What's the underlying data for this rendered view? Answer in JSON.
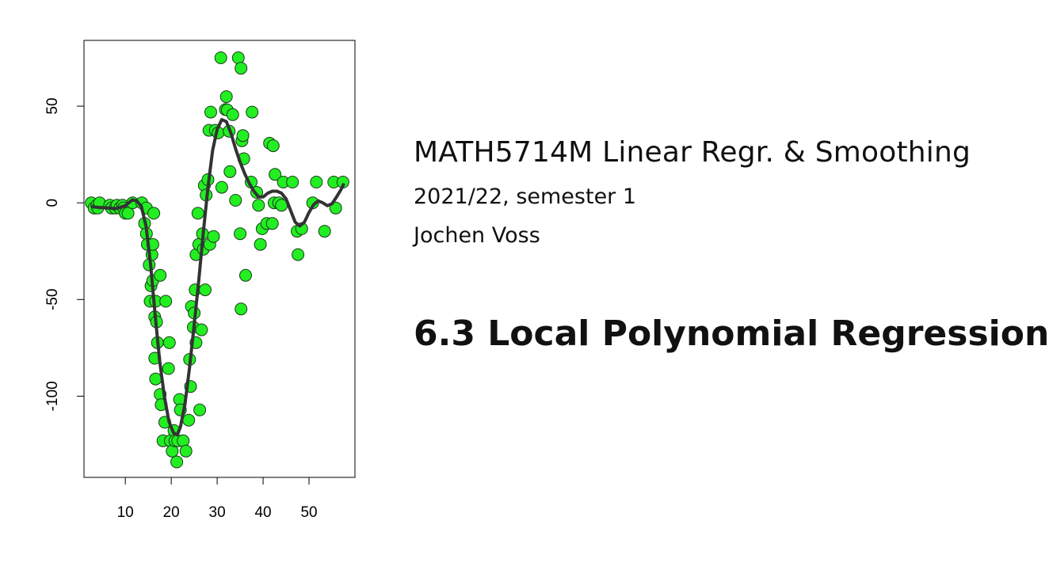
{
  "slide": {
    "course_title": "MATH5714M Linear Regr. & Smoothing",
    "semester": "2021/22, semester 1",
    "author": "Jochen Voss",
    "section_title": "6.3 Local Polynomial Regression"
  },
  "chart_data": {
    "type": "scatter",
    "title": "",
    "xlabel": "",
    "ylabel": "",
    "xlim": [
      1,
      60
    ],
    "ylim": [
      -142,
      84
    ],
    "x_ticks": [
      10,
      20,
      30,
      40,
      50
    ],
    "y_ticks": [
      -100,
      -50,
      0,
      50
    ],
    "grid": false,
    "point_color": "#22ee22",
    "point_edge_color": "#1a3a1a",
    "line_color": "#333333",
    "points": [
      [
        2.6,
        0.0
      ],
      [
        3.2,
        -2.7
      ],
      [
        3.8,
        -1.3
      ],
      [
        4.0,
        -2.7
      ],
      [
        4.4,
        0.0
      ],
      [
        6.6,
        -1.3
      ],
      [
        7.0,
        -2.7
      ],
      [
        7.8,
        -2.7
      ],
      [
        8.2,
        -1.3
      ],
      [
        8.8,
        -2.7
      ],
      [
        9.4,
        -1.3
      ],
      [
        9.6,
        -2.7
      ],
      [
        10.0,
        -5.4
      ],
      [
        10.6,
        -5.4
      ],
      [
        11.6,
        0.0
      ],
      [
        13.6,
        0.0
      ],
      [
        14.2,
        -10.7
      ],
      [
        14.6,
        -2.7
      ],
      [
        14.6,
        -16.0
      ],
      [
        14.8,
        -21.5
      ],
      [
        15.2,
        -32.1
      ],
      [
        15.4,
        -50.9
      ],
      [
        15.6,
        -42.9
      ],
      [
        15.8,
        -26.8
      ],
      [
        16.0,
        -21.5
      ],
      [
        16.0,
        -40.2
      ],
      [
        16.2,
        -5.4
      ],
      [
        16.4,
        -59.0
      ],
      [
        16.4,
        -80.4
      ],
      [
        16.6,
        -91.1
      ],
      [
        16.6,
        -50.9
      ],
      [
        16.8,
        -61.6
      ],
      [
        17.0,
        -72.3
      ],
      [
        17.6,
        -37.5
      ],
      [
        17.6,
        -99.1
      ],
      [
        17.8,
        -104.4
      ],
      [
        18.2,
        -123.1
      ],
      [
        18.6,
        -113.5
      ],
      [
        18.8,
        -50.9
      ],
      [
        19.4,
        -85.7
      ],
      [
        19.8,
        -123.1
      ],
      [
        19.6,
        -72.3
      ],
      [
        20.2,
        -128.4
      ],
      [
        20.6,
        -117.8
      ],
      [
        20.8,
        -123.1
      ],
      [
        21.2,
        -134.0
      ],
      [
        21.4,
        -123.1
      ],
      [
        21.8,
        -101.7
      ],
      [
        22.0,
        -107.1
      ],
      [
        22.6,
        -123.1
      ],
      [
        23.2,
        -128.4
      ],
      [
        23.8,
        -112.4
      ],
      [
        24.0,
        -81.0
      ],
      [
        24.2,
        -95.0
      ],
      [
        24.4,
        -53.6
      ],
      [
        24.8,
        -64.3
      ],
      [
        25.0,
        -57.0
      ],
      [
        25.2,
        -45.0
      ],
      [
        25.4,
        -26.8
      ],
      [
        25.4,
        -72.3
      ],
      [
        25.8,
        -5.4
      ],
      [
        26.0,
        -21.5
      ],
      [
        26.2,
        -107.1
      ],
      [
        26.6,
        -65.7
      ],
      [
        26.8,
        -16.0
      ],
      [
        27.0,
        -24.0
      ],
      [
        27.2,
        9.0
      ],
      [
        27.4,
        -45.0
      ],
      [
        27.6,
        4.0
      ],
      [
        28.0,
        12.0
      ],
      [
        28.2,
        37.5
      ],
      [
        28.4,
        -21.5
      ],
      [
        28.6,
        46.9
      ],
      [
        29.2,
        -17.4
      ],
      [
        29.6,
        37.5
      ],
      [
        30.2,
        36.2
      ],
      [
        30.8,
        75.0
      ],
      [
        31.0,
        8.0
      ],
      [
        31.8,
        48.2
      ],
      [
        32.0,
        54.9
      ],
      [
        32.2,
        48.0
      ],
      [
        32.6,
        37.0
      ],
      [
        32.8,
        16.1
      ],
      [
        33.4,
        45.6
      ],
      [
        34.0,
        1.3
      ],
      [
        34.6,
        75.0
      ],
      [
        35.0,
        -16.0
      ],
      [
        35.2,
        69.6
      ],
      [
        35.2,
        -54.9
      ],
      [
        35.4,
        32.1
      ],
      [
        35.6,
        34.8
      ],
      [
        35.8,
        22.8
      ],
      [
        36.2,
        -37.5
      ],
      [
        37.4,
        10.7
      ],
      [
        37.6,
        46.9
      ],
      [
        38.6,
        5.4
      ],
      [
        39.0,
        -1.3
      ],
      [
        39.4,
        -21.5
      ],
      [
        39.8,
        -13.4
      ],
      [
        40.8,
        -10.7
      ],
      [
        41.4,
        30.8
      ],
      [
        42.0,
        -10.7
      ],
      [
        42.2,
        29.5
      ],
      [
        42.6,
        14.7
      ],
      [
        42.4,
        0.0
      ],
      [
        43.4,
        0.0
      ],
      [
        44.0,
        -1.3
      ],
      [
        44.4,
        10.7
      ],
      [
        46.4,
        10.7
      ],
      [
        47.4,
        -14.7
      ],
      [
        47.6,
        -26.8
      ],
      [
        48.4,
        -13.4
      ],
      [
        50.8,
        0.0
      ],
      [
        51.6,
        10.7
      ],
      [
        53.4,
        -14.7
      ],
      [
        55.4,
        10.7
      ],
      [
        55.8,
        -2.7
      ],
      [
        57.4,
        10.7
      ]
    ],
    "smooth_line": [
      [
        2.6,
        -2.0
      ],
      [
        5.0,
        -2.5
      ],
      [
        8.0,
        -3.0
      ],
      [
        10.0,
        -1.5
      ],
      [
        11.5,
        1.5
      ],
      [
        12.5,
        1.0
      ],
      [
        13.5,
        -2.0
      ],
      [
        14.5,
        -12.0
      ],
      [
        15.5,
        -32.0
      ],
      [
        16.5,
        -58.0
      ],
      [
        17.5,
        -82.0
      ],
      [
        18.5,
        -100.0
      ],
      [
        19.5,
        -113.0
      ],
      [
        20.5,
        -119.0
      ],
      [
        21.3,
        -120.0
      ],
      [
        22.0,
        -116.0
      ],
      [
        23.0,
        -104.0
      ],
      [
        24.0,
        -85.0
      ],
      [
        25.0,
        -63.0
      ],
      [
        26.0,
        -40.0
      ],
      [
        27.0,
        -15.0
      ],
      [
        28.0,
        8.0
      ],
      [
        29.0,
        27.0
      ],
      [
        30.0,
        38.0
      ],
      [
        31.0,
        43.0
      ],
      [
        32.0,
        42.0
      ],
      [
        33.0,
        36.0
      ],
      [
        34.0,
        28.0
      ],
      [
        35.0,
        21.0
      ],
      [
        36.0,
        15.0
      ],
      [
        37.0,
        10.0
      ],
      [
        38.0,
        6.0
      ],
      [
        39.0,
        3.0
      ],
      [
        40.0,
        3.0
      ],
      [
        41.0,
        5.0
      ],
      [
        42.0,
        6.0
      ],
      [
        43.0,
        6.0
      ],
      [
        44.0,
        5.0
      ],
      [
        45.0,
        2.0
      ],
      [
        46.0,
        -4.0
      ],
      [
        47.0,
        -10.0
      ],
      [
        48.0,
        -12.0
      ],
      [
        49.0,
        -10.0
      ],
      [
        50.0,
        -5.0
      ],
      [
        51.0,
        -1.0
      ],
      [
        52.0,
        1.0
      ],
      [
        53.0,
        0.0
      ],
      [
        54.0,
        -1.5
      ],
      [
        55.0,
        -0.5
      ],
      [
        56.0,
        3.0
      ],
      [
        57.0,
        7.0
      ],
      [
        57.6,
        10.0
      ]
    ]
  }
}
